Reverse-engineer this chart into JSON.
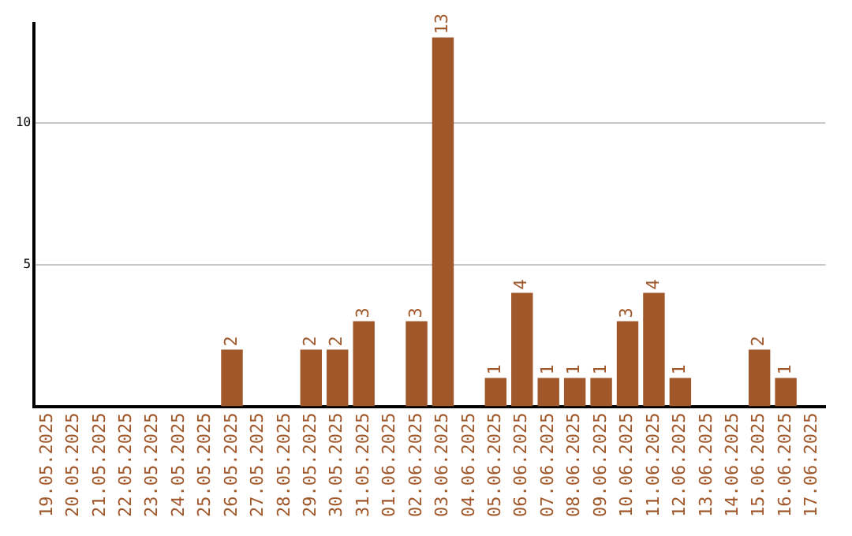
{
  "chart_data": {
    "type": "bar",
    "categories": [
      "19.05.2025",
      "20.05.2025",
      "21.05.2025",
      "22.05.2025",
      "23.05.2025",
      "24.05.2025",
      "25.05.2025",
      "26.05.2025",
      "27.05.2025",
      "28.05.2025",
      "29.05.2025",
      "30.05.2025",
      "31.05.2025",
      "01.06.2025",
      "02.06.2025",
      "03.06.2025",
      "04.06.2025",
      "05.06.2025",
      "06.06.2025",
      "07.06.2025",
      "08.06.2025",
      "09.06.2025",
      "10.06.2025",
      "11.06.2025",
      "12.06.2025",
      "13.06.2025",
      "14.06.2025",
      "15.06.2025",
      "16.06.2025",
      "17.06.2025"
    ],
    "values": [
      0,
      0,
      0,
      0,
      0,
      0,
      0,
      2,
      0,
      0,
      2,
      2,
      3,
      0,
      3,
      13,
      0,
      1,
      4,
      1,
      1,
      1,
      3,
      4,
      1,
      0,
      0,
      2,
      1,
      0
    ],
    "value_labels": [
      null,
      null,
      null,
      null,
      null,
      null,
      null,
      "2",
      null,
      null,
      "2",
      "2",
      "3",
      null,
      "3",
      "13",
      null,
      "1",
      "4",
      "1",
      "1",
      "1",
      "3",
      "4",
      "1",
      null,
      null,
      "2",
      "1",
      null
    ],
    "color": "#a0572a",
    "ylim": [
      0,
      13.5
    ],
    "yticks": [
      5,
      10
    ],
    "grid": "y",
    "legend": false
  }
}
